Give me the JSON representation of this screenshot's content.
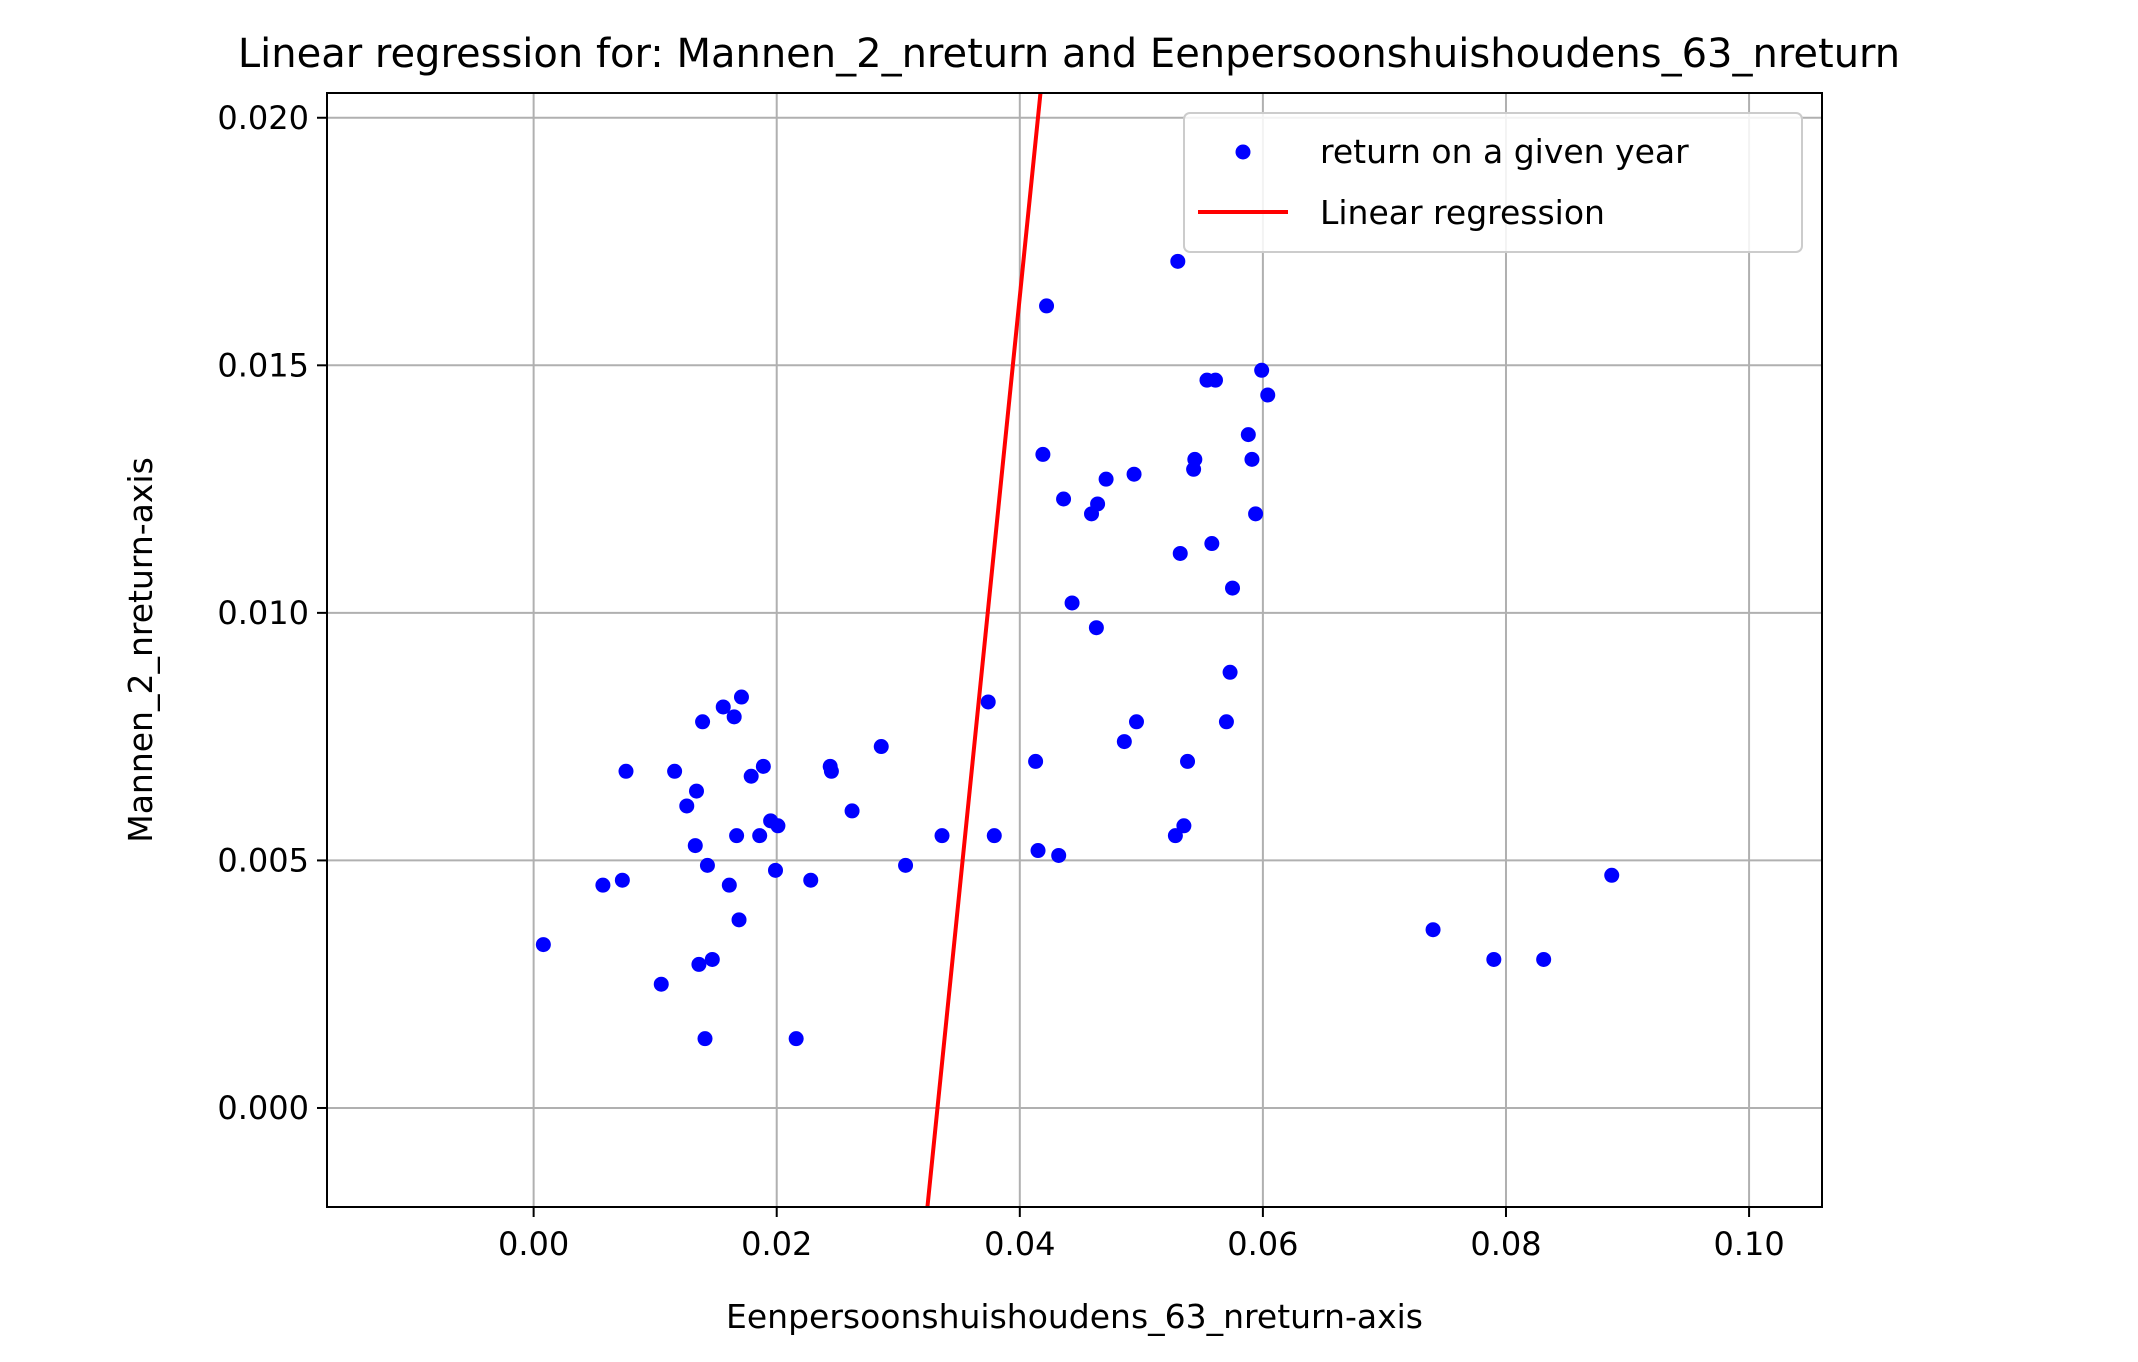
{
  "chart_data": {
    "type": "scatter",
    "title": "Linear regression for: Mannen_2_nreturn and Eenpersoonshuishoudens_63_nreturn",
    "xlabel": "Eenpersoonshuishoudens_63_nreturn-axis",
    "ylabel": "Mannen_2_nreturn-axis",
    "xlim": [
      -0.017,
      0.106
    ],
    "ylim": [
      -0.002,
      0.0205
    ],
    "xticks": [
      0.0,
      0.02,
      0.04,
      0.06,
      0.08,
      0.1
    ],
    "xtick_labels": [
      "0.00",
      "0.02",
      "0.04",
      "0.06",
      "0.08",
      "0.10"
    ],
    "yticks": [
      0.0,
      0.005,
      0.01,
      0.015,
      0.02
    ],
    "ytick_labels": [
      "0.000",
      "0.005",
      "0.010",
      "0.015",
      "0.020"
    ],
    "grid": true,
    "legend_position": "top-right",
    "series": [
      {
        "name": "return on a given year",
        "kind": "scatter",
        "color": "#0000ff",
        "points": [
          [
            0.0008,
            0.0033
          ],
          [
            0.0057,
            0.0045
          ],
          [
            0.0073,
            0.0046
          ],
          [
            0.0076,
            0.0068
          ],
          [
            0.0105,
            0.0025
          ],
          [
            0.0116,
            0.0068
          ],
          [
            0.0126,
            0.0061
          ],
          [
            0.0133,
            0.0053
          ],
          [
            0.0134,
            0.0064
          ],
          [
            0.0136,
            0.0029
          ],
          [
            0.0139,
            0.0078
          ],
          [
            0.0141,
            0.0014
          ],
          [
            0.0143,
            0.0049
          ],
          [
            0.0147,
            0.003
          ],
          [
            0.0156,
            0.0081
          ],
          [
            0.0161,
            0.0045
          ],
          [
            0.0165,
            0.0079
          ],
          [
            0.0167,
            0.0055
          ],
          [
            0.0169,
            0.0038
          ],
          [
            0.0171,
            0.0083
          ],
          [
            0.0179,
            0.0067
          ],
          [
            0.0186,
            0.0055
          ],
          [
            0.0189,
            0.0069
          ],
          [
            0.0195,
            0.0058
          ],
          [
            0.0199,
            0.0048
          ],
          [
            0.0201,
            0.0057
          ],
          [
            0.0216,
            0.0014
          ],
          [
            0.0228,
            0.0046
          ],
          [
            0.0244,
            0.0069
          ],
          [
            0.0245,
            0.0068
          ],
          [
            0.0262,
            0.006
          ],
          [
            0.0286,
            0.0073
          ],
          [
            0.0306,
            0.0049
          ],
          [
            0.0336,
            0.0055
          ],
          [
            0.0374,
            0.0082
          ],
          [
            0.0379,
            0.0055
          ],
          [
            0.0413,
            0.007
          ],
          [
            0.0415,
            0.0052
          ],
          [
            0.0419,
            0.0132
          ],
          [
            0.0422,
            0.0162
          ],
          [
            0.0432,
            0.0051
          ],
          [
            0.0436,
            0.0123
          ],
          [
            0.0443,
            0.0102
          ],
          [
            0.0459,
            0.012
          ],
          [
            0.0463,
            0.0097
          ],
          [
            0.0464,
            0.0122
          ],
          [
            0.0471,
            0.0127
          ],
          [
            0.0486,
            0.0074
          ],
          [
            0.0494,
            0.0128
          ],
          [
            0.0496,
            0.0078
          ],
          [
            0.0528,
            0.0055
          ],
          [
            0.053,
            0.0171
          ],
          [
            0.0532,
            0.0112
          ],
          [
            0.0535,
            0.0057
          ],
          [
            0.0538,
            0.007
          ],
          [
            0.0543,
            0.0129
          ],
          [
            0.0544,
            0.0131
          ],
          [
            0.0554,
            0.0147
          ],
          [
            0.0558,
            0.0114
          ],
          [
            0.0561,
            0.0147
          ],
          [
            0.057,
            0.0078
          ],
          [
            0.0573,
            0.0088
          ],
          [
            0.0575,
            0.0105
          ],
          [
            0.0588,
            0.0136
          ],
          [
            0.0591,
            0.0131
          ],
          [
            0.0594,
            0.012
          ],
          [
            0.0599,
            0.0149
          ],
          [
            0.0604,
            0.0144
          ],
          [
            0.074,
            0.0036
          ],
          [
            0.079,
            0.003
          ],
          [
            0.0831,
            0.003
          ],
          [
            0.0887,
            0.0047
          ]
        ]
      },
      {
        "name": "Linear regression",
        "kind": "line",
        "color": "#ff0000",
        "points": [
          [
            0.0324,
            -0.002
          ],
          [
            0.0417,
            0.0205
          ]
        ]
      }
    ]
  }
}
